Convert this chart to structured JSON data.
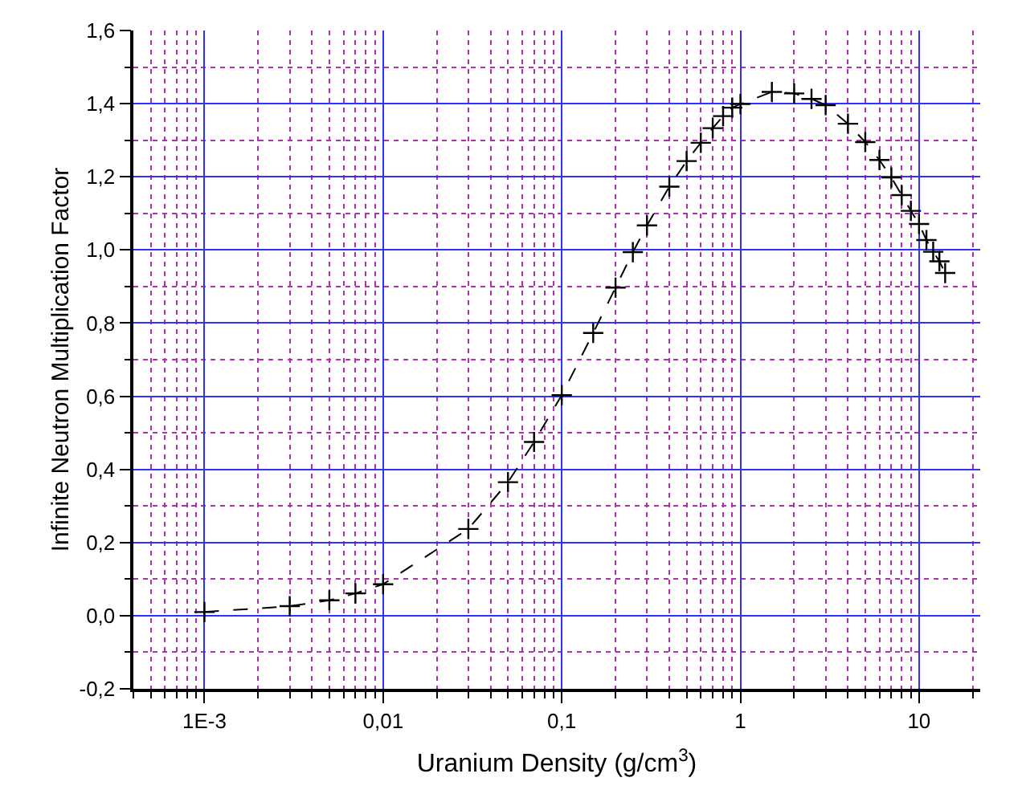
{
  "chart_data": {
    "type": "line",
    "xlabel": "Uranium Density (g/cm$^{3}$)",
    "ylabel": "Infinite Neutron Multiplication Factor",
    "log": "x",
    "grid": true,
    "marker": "cross",
    "line_style": "dashed",
    "xlim": [
      0.0004,
      22
    ],
    "ylim": [
      -0.2,
      1.6
    ],
    "xticks": [
      {
        "value": 0.0004,
        "label": null
      },
      {
        "value": 0.0005,
        "label": null
      },
      {
        "value": 0.0006,
        "label": null
      },
      {
        "value": 0.0007,
        "label": null
      },
      {
        "value": 0.0008,
        "label": null
      },
      {
        "value": 0.0009,
        "label": null
      },
      {
        "value": 0.001,
        "label": "1E-3"
      },
      {
        "value": 0.002,
        "label": null
      },
      {
        "value": 0.003,
        "label": null
      },
      {
        "value": 0.004,
        "label": null
      },
      {
        "value": 0.005,
        "label": null
      },
      {
        "value": 0.006,
        "label": null
      },
      {
        "value": 0.007,
        "label": null
      },
      {
        "value": 0.008,
        "label": null
      },
      {
        "value": 0.009,
        "label": null
      },
      {
        "value": 0.01,
        "label": "0,01"
      },
      {
        "value": 0.02,
        "label": null
      },
      {
        "value": 0.03,
        "label": null
      },
      {
        "value": 0.04,
        "label": null
      },
      {
        "value": 0.05,
        "label": null
      },
      {
        "value": 0.06,
        "label": null
      },
      {
        "value": 0.07,
        "label": null
      },
      {
        "value": 0.08,
        "label": null
      },
      {
        "value": 0.09,
        "label": null
      },
      {
        "value": 0.1,
        "label": "0,1"
      },
      {
        "value": 0.2,
        "label": null
      },
      {
        "value": 0.3,
        "label": null
      },
      {
        "value": 0.4,
        "label": null
      },
      {
        "value": 0.5,
        "label": null
      },
      {
        "value": 0.6,
        "label": null
      },
      {
        "value": 0.7,
        "label": null
      },
      {
        "value": 0.8,
        "label": null
      },
      {
        "value": 0.9,
        "label": null
      },
      1,
      {
        "value": 2,
        "label": null
      },
      {
        "value": 3,
        "label": null
      },
      {
        "value": 4,
        "label": null
      },
      {
        "value": 5,
        "label": null
      },
      {
        "value": 6,
        "label": null
      },
      {
        "value": 7,
        "label": null
      },
      {
        "value": 8,
        "label": null
      },
      {
        "value": 9,
        "label": null
      },
      10,
      {
        "value": 20,
        "label": null
      }
    ],
    "yticks": [
      {
        "value": -0.2,
        "label": "-0,2"
      },
      {
        "value": -0.1,
        "label": null
      },
      {
        "value": 0,
        "label": "0,0"
      },
      {
        "value": 0.1,
        "label": null
      },
      {
        "value": 0.2,
        "label": "0,2"
      },
      {
        "value": 0.3,
        "label": null
      },
      {
        "value": 0.4,
        "label": "0,4"
      },
      {
        "value": 0.5,
        "label": null
      },
      {
        "value": 0.6,
        "label": "0,6"
      },
      {
        "value": 0.7,
        "label": null
      },
      {
        "value": 0.8,
        "label": "0,8"
      },
      {
        "value": 0.9,
        "label": null
      },
      {
        "value": 1,
        "label": "1,0"
      },
      {
        "value": 1.1,
        "label": null
      },
      {
        "value": 1.2,
        "label": "1,2"
      },
      {
        "value": 1.3,
        "label": null
      },
      {
        "value": 1.4,
        "label": "1,4"
      },
      {
        "value": 1.5,
        "label": null
      },
      {
        "value": 1.6,
        "label": "1,6"
      }
    ],
    "x": [
      0.001,
      0.003,
      0.005,
      0.007,
      0.01,
      0.03,
      0.05,
      0.07,
      0.1,
      0.15,
      0.2,
      0.25,
      0.3,
      0.4,
      0.5,
      0.6,
      0.7,
      0.8,
      0.9,
      1,
      1.5,
      2,
      2.5,
      3,
      4,
      5,
      6,
      7,
      8,
      9,
      10,
      11,
      12,
      13,
      14
    ],
    "series": [
      {
        "color": "#000000",
        "values": [
          0.01,
          0.026,
          0.042,
          0.061,
          0.086,
          0.237,
          0.365,
          0.475,
          0.603,
          0.773,
          0.897,
          0.994,
          1.067,
          1.173,
          1.243,
          1.293,
          1.333,
          1.366,
          1.389,
          1.399,
          1.432,
          1.428,
          1.413,
          1.396,
          1.345,
          1.295,
          1.246,
          1.198,
          1.15,
          1.107,
          1.071,
          1.027,
          0.995,
          0.969,
          0.937
        ]
      }
    ]
  }
}
